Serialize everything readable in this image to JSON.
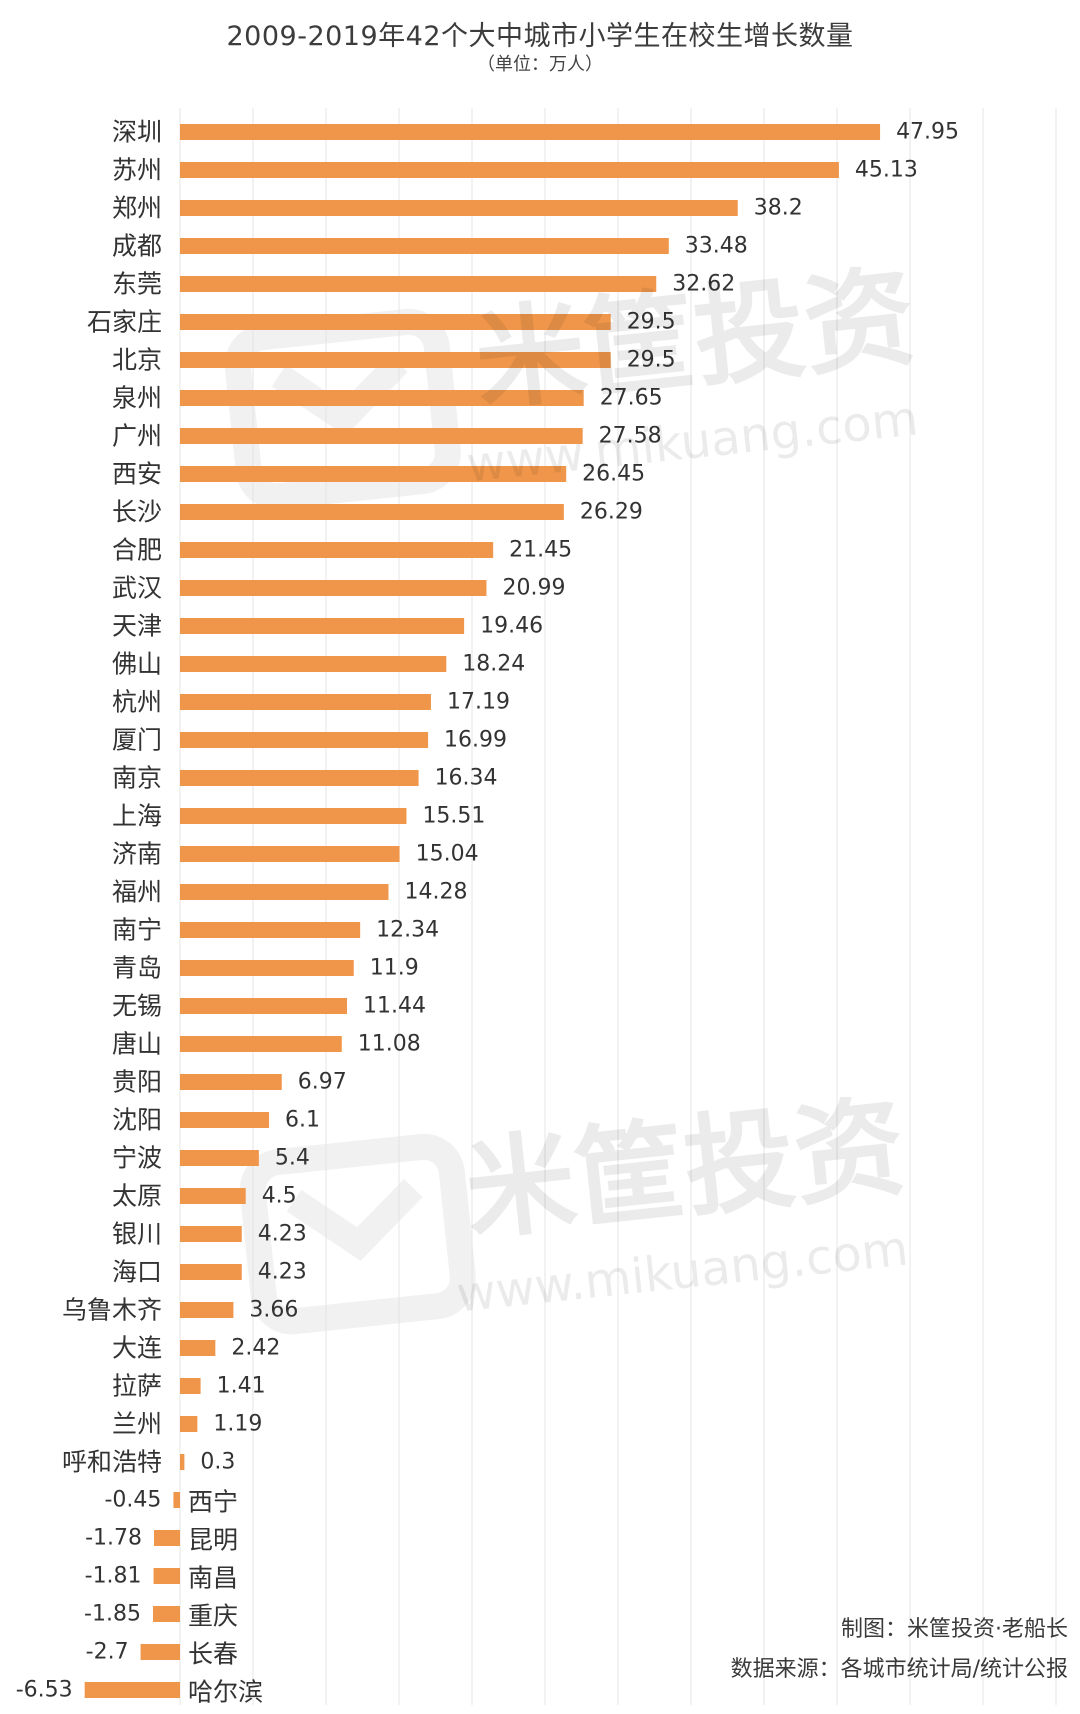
{
  "title": "2009-2019年42个大中城市小学生在校生增长数量",
  "subtitle": "（单位：万人）",
  "colors": {
    "bar": "#F0964A",
    "grid": "#E4E4E4",
    "text": "#333333"
  },
  "watermark": {
    "text": "米筐投资",
    "url": "www.mikuang.com"
  },
  "credits": {
    "line1": "制图：米筐投资·老船长",
    "line2": "数据来源：各城市统计局/统计公报"
  },
  "chart_data": {
    "type": "bar",
    "orientation": "horizontal",
    "title": "2009-2019年42个大中城市小学生在校生增长数量",
    "subtitle": "（单位：万人）",
    "grid": true,
    "categories": [
      "深圳",
      "苏州",
      "郑州",
      "成都",
      "东莞",
      "石家庄",
      "北京",
      "泉州",
      "广州",
      "西安",
      "长沙",
      "合肥",
      "武汉",
      "天津",
      "佛山",
      "杭州",
      "厦门",
      "南京",
      "上海",
      "济南",
      "福州",
      "南宁",
      "青岛",
      "无锡",
      "唐山",
      "贵阳",
      "沈阳",
      "宁波",
      "太原",
      "银川",
      "海口",
      "乌鲁木齐",
      "大连",
      "拉萨",
      "兰州",
      "呼和浩特",
      "西宁",
      "昆明",
      "南昌",
      "重庆",
      "长春",
      "哈尔滨"
    ],
    "values": [
      47.95,
      45.13,
      38.2,
      33.48,
      32.62,
      29.5,
      29.5,
      27.65,
      27.58,
      26.45,
      26.29,
      21.45,
      20.99,
      19.46,
      18.24,
      17.19,
      16.99,
      16.34,
      15.51,
      15.04,
      14.28,
      12.34,
      11.9,
      11.44,
      11.08,
      6.97,
      6.1,
      5.4,
      4.5,
      4.23,
      4.23,
      3.66,
      2.42,
      1.41,
      1.19,
      0.3,
      -0.45,
      -1.78,
      -1.81,
      -1.85,
      -2.7,
      -6.53
    ],
    "value_labels": [
      "47.95",
      "45.13",
      "38.2",
      "33.48",
      "32.62",
      "29.5",
      "29.5",
      "27.65",
      "27.58",
      "26.45",
      "26.29",
      "21.45",
      "20.99",
      "19.46",
      "18.24",
      "17.19",
      "16.99",
      "16.34",
      "15.51",
      "15.04",
      "14.28",
      "12.34",
      "11.9",
      "11.44",
      "11.08",
      "6.97",
      "6.1",
      "5.4",
      "4.5",
      "4.23",
      "4.23",
      "3.66",
      "2.42",
      "1.41",
      "1.19",
      "0.3",
      "-0.45",
      "-1.78",
      "-1.81",
      "-1.85",
      "-2.7",
      "-6.53"
    ],
    "xlim": [
      -6.53,
      55
    ]
  }
}
